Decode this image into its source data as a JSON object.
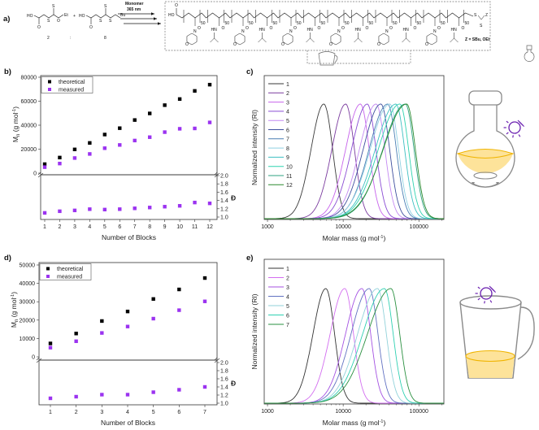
{
  "panel_labels": {
    "a": "a)",
    "b": "b)",
    "c": "c)",
    "d": "d)",
    "e": "e)"
  },
  "scheme": {
    "reagent_2": {
      "ho": "HO",
      "s": "S",
      "o": "O",
      "et": "Et",
      "number": "2"
    },
    "plus": "+",
    "ratio": ":",
    "reagent_8": {
      "ho": "HO",
      "s": "S",
      "bu": "Bu",
      "number": "8"
    },
    "arrow_label_1": "Monomer",
    "arrow_label_2": "365 nm",
    "polymer": {
      "end_group": "HO",
      "block_subscript": "50",
      "z": "Z",
      "s": "S",
      "z_definition": "Z = SBu, OEt",
      "amide_nh": "HN",
      "ring_n": "N",
      "ring_o": "O",
      "carbonyl_o": "O"
    }
  },
  "illustrations": {
    "flask": "round-bottom-flask-stirred-icon",
    "mug": "mug-icon",
    "light": "light-bulb-icon",
    "light_color": "#6a1fb0",
    "liquid_color": "#fde39a",
    "liquid_edge": "#f0b400"
  },
  "chart_data": [
    {
      "id": "b",
      "type": "scatter",
      "xlabel": "Number of Blocks",
      "ylabel": {
        "main": "M",
        "sub": "n",
        "rest": " (g mol",
        "sup": "-1",
        "close": ")"
      },
      "y2label": "Đ",
      "x": [
        1,
        2,
        3,
        4,
        5,
        6,
        7,
        8,
        9,
        10,
        11,
        12
      ],
      "xticks": [
        "1",
        "2",
        "3",
        "4",
        "5",
        "6",
        "7",
        "8",
        "9",
        "10",
        "11",
        "12"
      ],
      "ylim": [
        0,
        80000
      ],
      "yticks": [
        "0",
        "20000",
        "40000",
        "60000",
        "80000"
      ],
      "y2lim": [
        1.0,
        2.0
      ],
      "y2ticks": [
        "1.0",
        "1.2",
        "1.4",
        "1.6",
        "1.8",
        "2.0"
      ],
      "legend": "top-left",
      "series": [
        {
          "name": "theoretical",
          "color": "#000000",
          "values": [
            7500,
            13000,
            19800,
            25200,
            32200,
            37500,
            44300,
            49800,
            56700,
            61800,
            68600,
            73800
          ]
        },
        {
          "name": "measured",
          "color": "#9b33f0",
          "values": [
            5000,
            8000,
            12600,
            16000,
            20800,
            23500,
            27200,
            30000,
            34200,
            37000,
            37300,
            42300
          ]
        }
      ],
      "dispersity": {
        "color": "#9b33f0",
        "values": [
          1.1,
          1.14,
          1.16,
          1.19,
          1.18,
          1.19,
          1.21,
          1.23,
          1.25,
          1.27,
          1.35,
          1.33
        ]
      }
    },
    {
      "id": "c",
      "type": "line",
      "xlabel": {
        "main": "Molar mass (g mol",
        "sup": "-1",
        "close": ")"
      },
      "ylabel": "Normalized intensity (RI)",
      "xscale": "log",
      "xlim": [
        905,
        214000
      ],
      "xticks": [
        "1000",
        "10000",
        "100000"
      ],
      "legend": "top-left",
      "series": [
        {
          "name": "1",
          "peak_molar_mass": 5560,
          "color": "#3a3a3a"
        },
        {
          "name": "2",
          "peak_molar_mass": 10800,
          "color": "#7a3a9e"
        },
        {
          "name": "3",
          "peak_molar_mass": 16900,
          "color": "#c763ec"
        },
        {
          "name": "4",
          "peak_molar_mass": 20800,
          "color": "#8a4cd4"
        },
        {
          "name": "5",
          "peak_molar_mass": 27300,
          "color": "#c48af2"
        },
        {
          "name": "6",
          "peak_molar_mass": 31500,
          "color": "#3f4f9e"
        },
        {
          "name": "7",
          "peak_molar_mass": 38700,
          "color": "#4a7fb4"
        },
        {
          "name": "8",
          "peak_molar_mass": 41300,
          "color": "#8fd0e2"
        },
        {
          "name": "9",
          "peak_molar_mass": 49700,
          "color": "#3dbfc2"
        },
        {
          "name": "10",
          "peak_molar_mass": 56100,
          "color": "#2fd3b0"
        },
        {
          "name": "11",
          "peak_molar_mass": 66200,
          "color": "#2fa382"
        },
        {
          "name": "12",
          "peak_molar_mass": 69000,
          "color": "#2a8a2e"
        }
      ]
    },
    {
      "id": "d",
      "type": "scatter",
      "xlabel": "Number of Blocks",
      "ylabel": {
        "main": "M",
        "sub": "n",
        "rest": " (g mol",
        "sup": "-1",
        "close": ")"
      },
      "y2label": "Đ",
      "x": [
        1,
        2,
        3,
        4,
        5,
        6,
        7
      ],
      "xticks": [
        "1",
        "2",
        "3",
        "4",
        "5",
        "6",
        "7"
      ],
      "ylim": [
        0,
        50000
      ],
      "yticks": [
        "0",
        "10000",
        "20000",
        "30000",
        "40000",
        "50000"
      ],
      "y2lim": [
        1.0,
        2.0
      ],
      "y2ticks": [
        "1.0",
        "1.2",
        "1.4",
        "1.6",
        "1.8",
        "2.0"
      ],
      "legend": "top-left",
      "series": [
        {
          "name": "theoretical",
          "color": "#000000",
          "values": [
            7300,
            12700,
            19500,
            24700,
            31500,
            36700,
            42900
          ]
        },
        {
          "name": "measured",
          "color": "#9b33f0",
          "values": [
            5000,
            8500,
            13000,
            16500,
            20800,
            25400,
            30200
          ]
        }
      ],
      "dispersity": {
        "color": "#9b33f0",
        "values": [
          1.12,
          1.16,
          1.21,
          1.21,
          1.27,
          1.33,
          1.4
        ]
      }
    },
    {
      "id": "e",
      "type": "line",
      "xlabel": {
        "main": "Molar mass (g mol",
        "sup": "-1",
        "close": ")"
      },
      "ylabel": "Normalized intensity (RI)",
      "xscale": "log",
      "xlim": [
        905,
        214000
      ],
      "xticks": [
        "1000",
        "10000",
        "100000"
      ],
      "legend": "top-left",
      "series": [
        {
          "name": "1",
          "peak_molar_mass": 5900,
          "color": "#333333"
        },
        {
          "name": "2",
          "peak_molar_mass": 10500,
          "color": "#d36ef0"
        },
        {
          "name": "3",
          "peak_molar_mass": 17700,
          "color": "#a452e2"
        },
        {
          "name": "4",
          "peak_molar_mass": 22100,
          "color": "#6272c2"
        },
        {
          "name": "5",
          "peak_molar_mass": 28500,
          "color": "#92d2da"
        },
        {
          "name": "6",
          "peak_molar_mass": 35100,
          "color": "#2fd0b2"
        },
        {
          "name": "7",
          "peak_molar_mass": 42800,
          "color": "#2a9040"
        }
      ]
    }
  ]
}
